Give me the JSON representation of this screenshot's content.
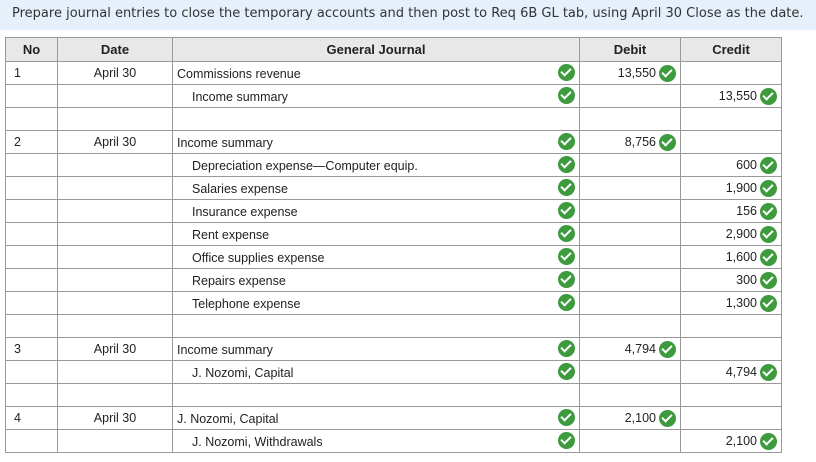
{
  "instructions": "Prepare journal entries to close the temporary accounts and then post to Req 6B GL tab, using April 30 Close as the date.",
  "headers": {
    "no": "No",
    "date": "Date",
    "gj": "General Journal",
    "debit": "Debit",
    "credit": "Credit"
  },
  "colors": {
    "check": "#3d9a3d",
    "header_bg": "#e8e8e8",
    "banner_bg": "#e6f0fa"
  },
  "entries": [
    {
      "no": "1",
      "date": "April 30",
      "lines": [
        {
          "account": "Commissions revenue",
          "indent": false,
          "debit": "13,550",
          "credit": ""
        },
        {
          "account": "Income summary",
          "indent": true,
          "debit": "",
          "credit": "13,550"
        }
      ]
    },
    {
      "no": "2",
      "date": "April 30",
      "lines": [
        {
          "account": "Income summary",
          "indent": false,
          "debit": "8,756",
          "credit": ""
        },
        {
          "account": "Depreciation expense—Computer equip.",
          "indent": true,
          "debit": "",
          "credit": "600"
        },
        {
          "account": "Salaries expense",
          "indent": true,
          "debit": "",
          "credit": "1,900"
        },
        {
          "account": "Insurance expense",
          "indent": true,
          "debit": "",
          "credit": "156"
        },
        {
          "account": "Rent expense",
          "indent": true,
          "debit": "",
          "credit": "2,900"
        },
        {
          "account": "Office supplies expense",
          "indent": true,
          "debit": "",
          "credit": "1,600"
        },
        {
          "account": "Repairs expense",
          "indent": true,
          "debit": "",
          "credit": "300"
        },
        {
          "account": "Telephone expense",
          "indent": true,
          "debit": "",
          "credit": "1,300"
        }
      ]
    },
    {
      "no": "3",
      "date": "April 30",
      "lines": [
        {
          "account": "Income summary",
          "indent": false,
          "debit": "4,794",
          "credit": ""
        },
        {
          "account": "J. Nozomi, Capital",
          "indent": true,
          "debit": "",
          "credit": "4,794"
        }
      ]
    },
    {
      "no": "4",
      "date": "April 30",
      "lines": [
        {
          "account": "J. Nozomi, Capital",
          "indent": false,
          "debit": "2,100",
          "credit": ""
        },
        {
          "account": "J. Nozomi, Withdrawals",
          "indent": true,
          "debit": "",
          "credit": "2,100"
        }
      ]
    }
  ]
}
